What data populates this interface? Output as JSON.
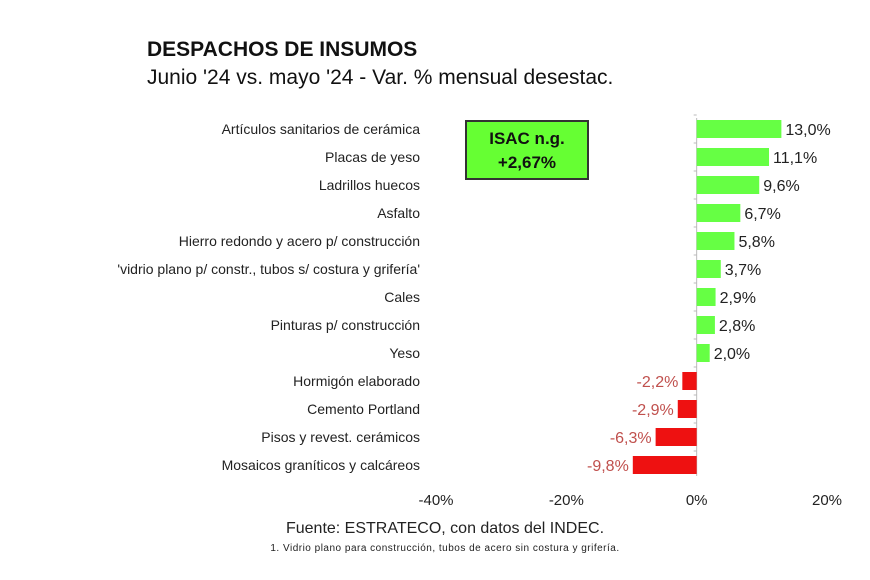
{
  "chart_data": {
    "type": "bar",
    "orientation": "horizontal",
    "title": "DESPACHOS DE INSUMOS",
    "subtitle": "Junio '24 vs. mayo '24 - Var. % mensual desestac.",
    "categories": [
      "Artículos sanitarios de cerámica",
      "Placas de yeso",
      "Ladrillos huecos",
      "Asfalto",
      "Hierro redondo y acero p/ construcción",
      "'vidrio plano p/ constr., tubos s/ costura y grifería'",
      "Cales",
      "Pinturas p/ construcción",
      "Yeso",
      "Hormigón elaborado",
      "Cemento Portland",
      "Pisos y revest. cerámicos",
      "Mosaicos graníticos y calcáreos"
    ],
    "values": [
      13.0,
      11.1,
      9.6,
      6.7,
      5.8,
      3.7,
      2.9,
      2.8,
      2.0,
      -2.2,
      -2.9,
      -6.3,
      -9.8
    ],
    "data_labels": [
      "13,0%",
      "11,1%",
      "9,6%",
      "6,7%",
      "5,8%",
      "3,7%",
      "2,9%",
      "2,8%",
      "2,0%",
      "-2,2%",
      "-2,9%",
      "-6,3%",
      "-9,8%"
    ],
    "xlim": [
      -40,
      20
    ],
    "xticks": [
      -40,
      -20,
      0,
      20
    ],
    "xtick_labels": [
      "-40%",
      "-20%",
      "0%",
      "20%"
    ],
    "grid": false,
    "colors": {
      "positive": "#66ff44",
      "negative": "#ee1111",
      "negative_label": "#c0504d"
    },
    "annotation": {
      "line1": "ISAC n.g.",
      "line2": "+2,67%",
      "color": "#66ff33"
    }
  },
  "footer": {
    "source": "Fuente: ESTRATECO, con datos del INDEC.",
    "note": "1. Vidrio plano para construcción, tubos de acero sin costura y grifería."
  }
}
